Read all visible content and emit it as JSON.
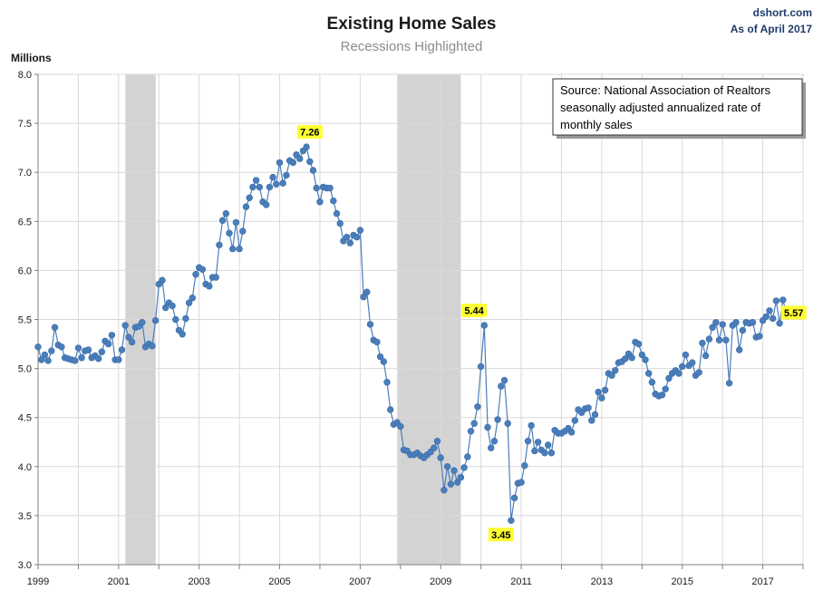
{
  "header": {
    "title": "Existing Home Sales",
    "subtitle": "Recessions Highlighted",
    "credit_line1": "dshort.com",
    "credit_line2": "As of April 2017"
  },
  "source_box": {
    "lines": [
      "Source:  National Association of Realtors",
      "seasonally adjusted annualized rate of",
      "monthly  sales"
    ]
  },
  "colors": {
    "series": "#4a7ebb",
    "marker": "#4a7ebb",
    "recession": "#d3d3d3",
    "annotation_bg": "#ffff33",
    "grid": "#d9d9d9"
  },
  "chart_data": {
    "type": "line",
    "ylabel": "Millions",
    "xlabel": "",
    "ylim": [
      3.0,
      8.0
    ],
    "yticks": [
      "3.0",
      "3.5",
      "4.0",
      "4.5",
      "5.0",
      "5.5",
      "6.0",
      "6.5",
      "7.0",
      "7.5",
      "8.0"
    ],
    "xlim": [
      1999.0,
      2018.0
    ],
    "xticks": [
      "1999",
      "2001",
      "2003",
      "2005",
      "2007",
      "2009",
      "2011",
      "2013",
      "2015",
      "2017"
    ],
    "grid": true,
    "recessions": [
      [
        2001.17,
        2001.92
      ],
      [
        2007.92,
        2009.5
      ]
    ],
    "annotations": [
      {
        "label": "7.26",
        "x": 2005.75,
        "y": 7.26,
        "position": "above"
      },
      {
        "label": "5.44",
        "x": 2009.83,
        "y": 5.44,
        "position": "above"
      },
      {
        "label": "3.45",
        "x": 2010.5,
        "y": 3.45,
        "position": "below"
      },
      {
        "label": "5.57",
        "x": 2017.25,
        "y": 5.57,
        "position": "right"
      }
    ],
    "series": [
      {
        "x_start": 1999.0,
        "step_months": 1,
        "values": [
          5.22,
          5.09,
          5.14,
          5.08,
          5.18,
          5.42,
          5.24,
          5.22,
          5.11,
          5.1,
          5.09,
          5.08,
          5.21,
          5.11,
          5.18,
          5.19,
          5.11,
          5.13,
          5.1,
          5.17,
          5.28,
          5.25,
          5.34,
          5.09,
          5.09,
          5.19,
          5.44,
          5.32,
          5.27,
          5.42,
          5.43,
          5.47,
          5.22,
          5.25,
          5.23,
          5.49,
          5.86,
          5.9,
          5.62,
          5.67,
          5.64,
          5.5,
          5.39,
          5.35,
          5.51,
          5.67,
          5.72,
          5.96,
          6.03,
          6.01,
          5.86,
          5.84,
          5.93,
          5.93,
          6.26,
          6.51,
          6.58,
          6.38,
          6.22,
          6.49,
          6.22,
          6.4,
          6.65,
          6.74,
          6.85,
          6.92,
          6.85,
          6.7,
          6.67,
          6.85,
          6.95,
          6.88,
          7.1,
          6.89,
          6.97,
          7.12,
          7.1,
          7.18,
          7.14,
          7.22,
          7.26,
          7.11,
          7.02,
          6.84,
          6.7,
          6.85,
          6.84,
          6.84,
          6.71,
          6.58,
          6.48,
          6.3,
          6.34,
          6.28,
          6.36,
          6.34,
          6.41,
          5.73,
          5.78,
          5.45,
          5.29,
          5.27,
          5.12,
          5.07,
          4.86,
          4.58,
          4.43,
          4.45,
          4.41,
          4.17,
          4.16,
          4.12,
          4.12,
          4.14,
          4.11,
          4.09,
          4.12,
          4.15,
          4.19,
          4.26,
          4.09,
          3.76,
          4.0,
          3.82,
          3.96,
          3.84,
          3.89,
          3.99,
          4.1,
          4.36,
          4.44,
          4.61,
          5.02,
          5.44,
          4.4,
          4.19,
          4.26,
          4.48,
          4.82,
          4.88,
          4.44,
          3.45,
          3.68,
          3.83,
          3.84,
          4.01,
          4.26,
          4.42,
          4.16,
          4.25,
          4.17,
          4.14,
          4.22,
          4.14,
          4.37,
          4.34,
          4.34,
          4.36,
          4.39,
          4.35,
          4.47,
          4.58,
          4.55,
          4.59,
          4.6,
          4.47,
          4.53,
          4.76,
          4.7,
          4.78,
          4.95,
          4.93,
          4.98,
          5.06,
          5.07,
          5.1,
          5.15,
          5.11,
          5.27,
          5.25,
          5.14,
          5.09,
          4.95,
          4.86,
          4.74,
          4.72,
          4.73,
          4.79,
          4.9,
          4.95,
          4.98,
          4.95,
          5.02,
          5.14,
          5.03,
          5.06,
          4.93,
          4.96,
          5.26,
          5.13,
          5.3,
          5.42,
          5.47,
          5.29,
          5.45,
          5.29,
          4.85,
          5.44,
          5.47,
          5.19,
          5.39,
          5.47,
          5.46,
          5.47,
          5.32,
          5.33,
          5.49,
          5.53,
          5.59,
          5.51,
          5.69,
          5.46,
          5.7,
          5.57
        ]
      }
    ]
  }
}
